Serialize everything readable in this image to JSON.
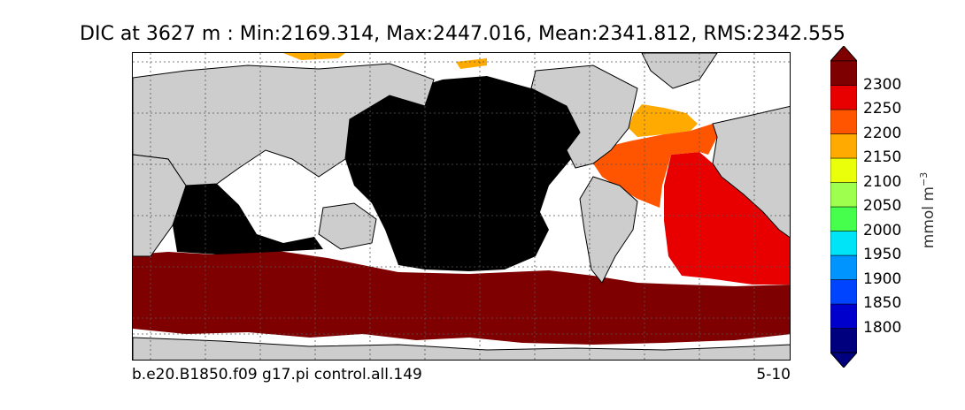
{
  "title": "DIC at 3627 m : Min:2169.314, Max:2447.016, Mean:2341.812, RMS:2342.555",
  "footer": {
    "case_name": "b.e20.B1850.f09 g17.pi control.all.149",
    "period": "5-10"
  },
  "colorbar": {
    "units_base": "mmol m",
    "units_exponent": "−3",
    "tick_labels": [
      "2300",
      "2250",
      "2200",
      "2150",
      "2100",
      "2050",
      "2000",
      "1950",
      "1900",
      "1850",
      "1800"
    ],
    "bin_colors": [
      "#00007f",
      "#0000cd",
      "#0044ff",
      "#0094ff",
      "#00e4f8",
      "#46ff4c",
      "#9eff4e",
      "#eaff0a",
      "#ffaa00",
      "#ff5500",
      "#e80000",
      "#7f0000"
    ],
    "over_color": "#7f0000",
    "under_color": "#00007f"
  },
  "map": {
    "land_color": "#cdcdcd",
    "no_data_color": "#ffffff",
    "black_region_color": "#000000",
    "regions": {
      "pacific_indian": "black (above range)",
      "southern_ocean": "#7f0000",
      "south_atlantic": "#e80000",
      "north_atlantic_east": "#ff5500",
      "north_atlantic_north": "#ffaa00"
    }
  }
}
